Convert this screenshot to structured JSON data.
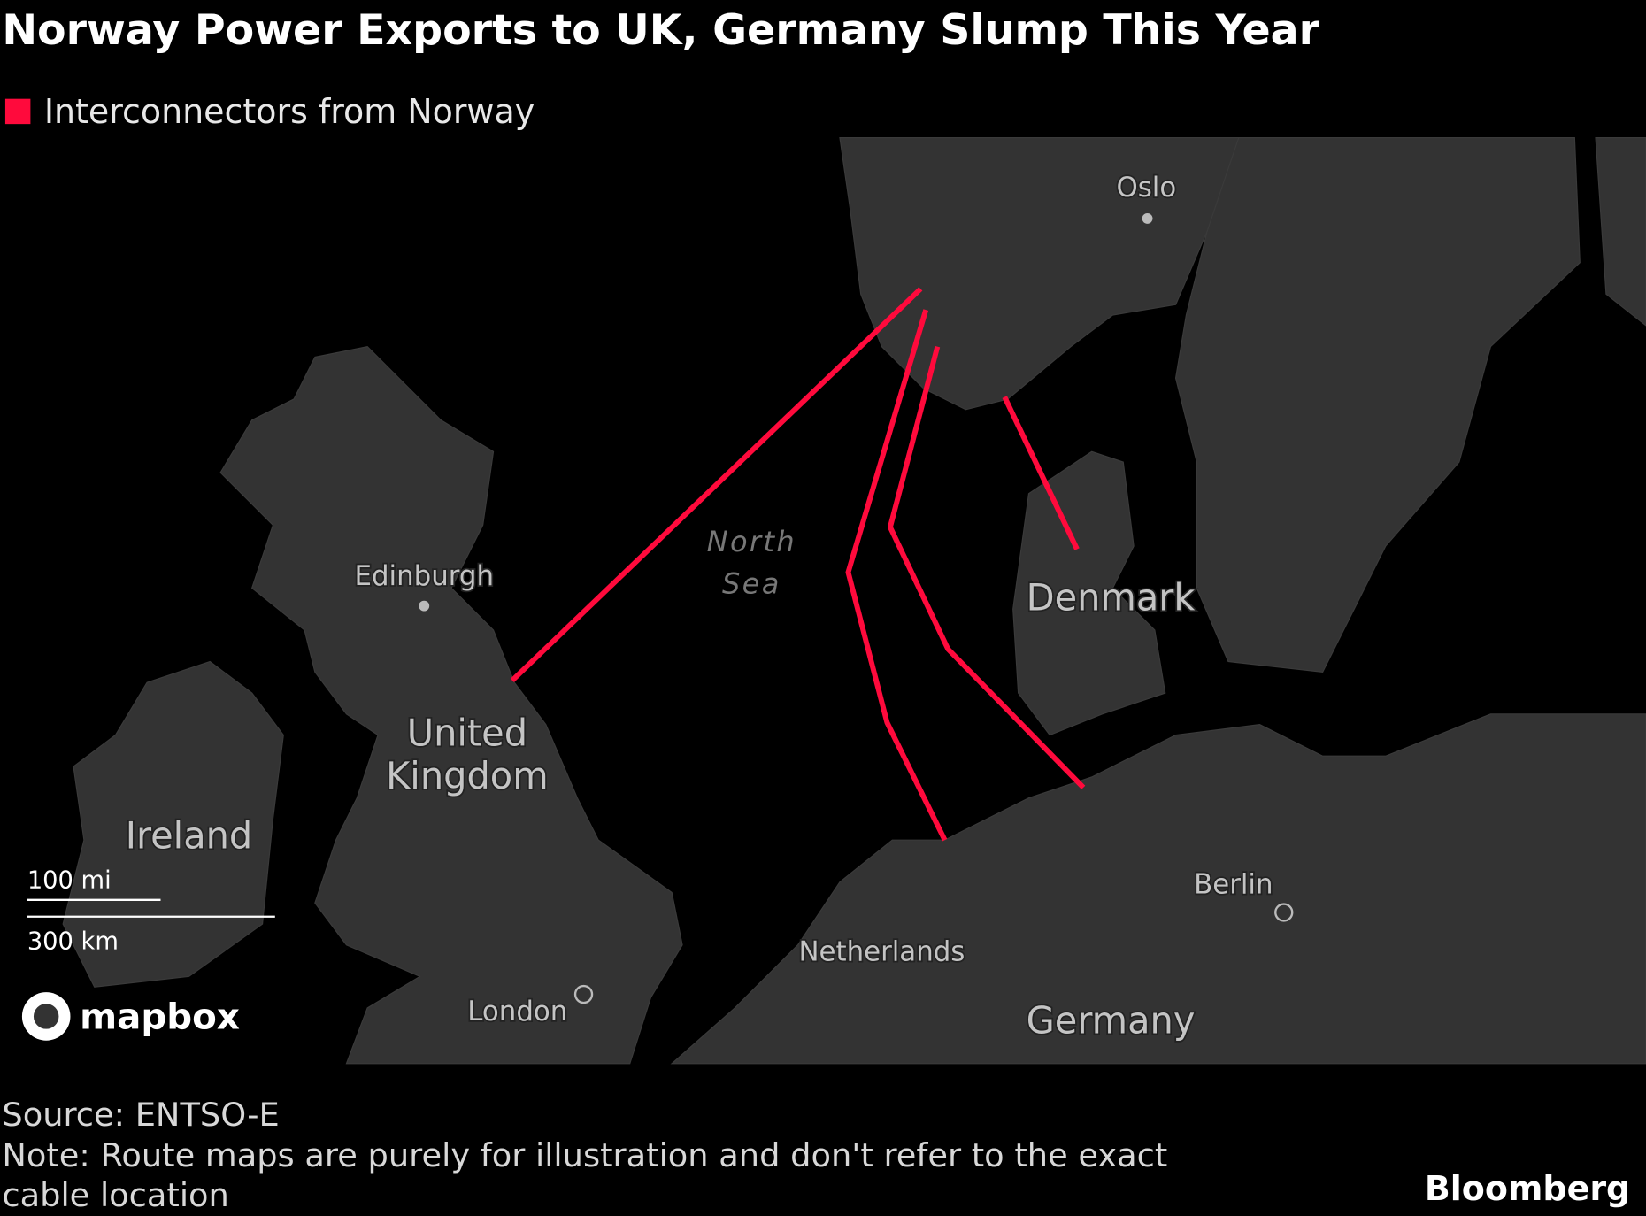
{
  "header": {
    "title": "Norway Power Exports to UK, Germany Slump This Year",
    "legend": "Interconnectors from Norway"
  },
  "map": {
    "labels": {
      "oslo": "Oslo",
      "edinburgh": "Edinburgh",
      "united_kingdom": [
        "United",
        "Kingdom"
      ],
      "ireland": "Ireland",
      "north_sea": [
        "North",
        "Sea"
      ],
      "denmark": "Denmark",
      "netherlands": "Netherlands",
      "berlin": "Berlin",
      "london": "London",
      "germany": "Germany"
    },
    "scale": {
      "miles": "100 mi",
      "km": "300 km"
    },
    "attribution": "mapbox"
  },
  "footer": {
    "source": "Source: ENTSO-E",
    "note": [
      "Note: Route maps are purely for illustration and don't refer to the exact",
      "cable location"
    ],
    "brand": "Bloomberg"
  }
}
